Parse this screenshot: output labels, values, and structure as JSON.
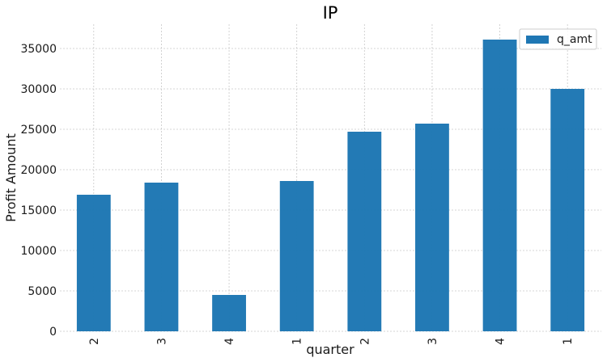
{
  "chart_data": {
    "type": "bar",
    "title": "IP",
    "xlabel": "quarter",
    "ylabel": "Profit Amount",
    "categories": [
      "2",
      "3",
      "4",
      "1",
      "2",
      "3",
      "4",
      "1"
    ],
    "series": [
      {
        "name": "q_amt",
        "values": [
          16900,
          18400,
          4500,
          18600,
          24700,
          25700,
          36100,
          30000
        ],
        "color": "#1f77b4"
      }
    ],
    "ylim": [
      0,
      38000
    ],
    "yticks": [
      0,
      5000,
      10000,
      15000,
      20000,
      25000,
      30000,
      35000
    ],
    "grid": true,
    "legend_position": "top-right"
  }
}
